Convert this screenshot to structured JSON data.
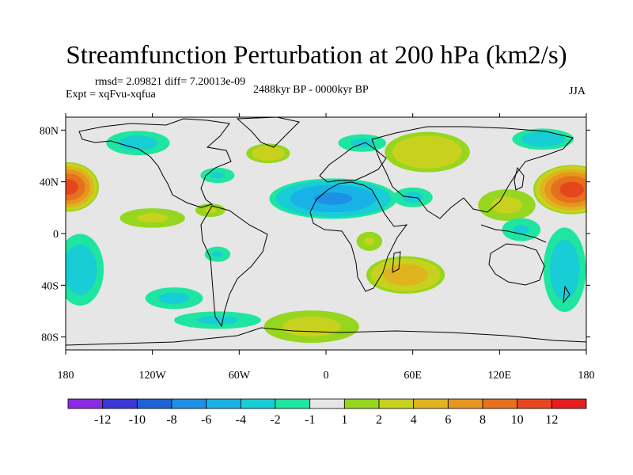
{
  "header": {
    "title": "Streamfunction Perturbation at 200 hPa (km2/s)",
    "stats": "rmsd= 2.09821 diff= 7.20013e-09",
    "experiment": "Expt = xqFvu-xqfua",
    "period": "2488kyr BP - 0000kyr BP",
    "season": "JJA"
  },
  "chart_data": {
    "type": "heatmap",
    "title": "Streamfunction Perturbation at 200 hPa (km2/s)",
    "projection": "cylindrical equidistant",
    "xlim": [
      -180,
      180
    ],
    "ylim": [
      -90,
      90
    ],
    "x_ticks": [
      {
        "value": -180,
        "label": "180"
      },
      {
        "value": -120,
        "label": "120W"
      },
      {
        "value": -60,
        "label": "60W"
      },
      {
        "value": 0,
        "label": "0"
      },
      {
        "value": 60,
        "label": "60E"
      },
      {
        "value": 120,
        "label": "120E"
      },
      {
        "value": 180,
        "label": "180"
      }
    ],
    "y_ticks": [
      {
        "value": 80,
        "label": "80N"
      },
      {
        "value": 40,
        "label": "40N"
      },
      {
        "value": 0,
        "label": "0"
      },
      {
        "value": -40,
        "label": "40S"
      },
      {
        "value": -80,
        "label": "80S"
      }
    ],
    "colorbar": {
      "levels": [
        -14,
        -12,
        -10,
        -8,
        -6,
        -4,
        -2,
        -1,
        1,
        2,
        4,
        6,
        8,
        10,
        12,
        14
      ],
      "labels": [
        "-12",
        "-10",
        "-8",
        "-6",
        "-4",
        "-2",
        "-1",
        "1",
        "2",
        "4",
        "6",
        "8",
        "10",
        "12"
      ],
      "colors": [
        "#8a2be2",
        "#3a37d6",
        "#1e62d6",
        "#1e90e6",
        "#18b2e6",
        "#18cdd6",
        "#1ee6a0",
        "#e6e6e6",
        "#96d61e",
        "#c8d21e",
        "#e0b41e",
        "#e6961e",
        "#e6701e",
        "#e6461e",
        "#e61e1e"
      ]
    },
    "anomalies": [
      {
        "lon": -178,
        "lat": 36,
        "rx": 22,
        "ry": 20,
        "amp": 11
      },
      {
        "lon": 170,
        "lat": 34,
        "rx": 28,
        "ry": 20,
        "amp": 11
      },
      {
        "lon": 70,
        "lat": 63,
        "rx": 34,
        "ry": 18,
        "amp": 4
      },
      {
        "lon": 125,
        "lat": 22,
        "rx": 26,
        "ry": 16,
        "amp": 2.4
      },
      {
        "lon": 150,
        "lat": 73,
        "rx": 26,
        "ry": 10,
        "amp": -3
      },
      {
        "lon": -40,
        "lat": 62,
        "rx": 18,
        "ry": 9,
        "amp": 3.4
      },
      {
        "lon": -130,
        "lat": 70,
        "rx": 28,
        "ry": 12,
        "amp": -2.6
      },
      {
        "lon": -75,
        "lat": 45,
        "rx": 16,
        "ry": 8,
        "amp": -2.2
      },
      {
        "lon": 5,
        "lat": 27,
        "rx": 48,
        "ry": 17,
        "amp": -6.5
      },
      {
        "lon": 60,
        "lat": 28,
        "rx": 18,
        "ry": 10,
        "amp": -2.4
      },
      {
        "lon": -120,
        "lat": 12,
        "rx": 30,
        "ry": 10,
        "amp": 2.3
      },
      {
        "lon": -80,
        "lat": 18,
        "rx": 14,
        "ry": 7,
        "amp": 2.2
      },
      {
        "lon": 30,
        "lat": -6,
        "rx": 12,
        "ry": 10,
        "amp": 2.2
      },
      {
        "lon": 55,
        "lat": -32,
        "rx": 30,
        "ry": 16,
        "amp": 5.5
      },
      {
        "lon": -10,
        "lat": -72,
        "rx": 42,
        "ry": 16,
        "amp": 2.6
      },
      {
        "lon": -170,
        "lat": -28,
        "rx": 20,
        "ry": 34,
        "amp": -3
      },
      {
        "lon": -105,
        "lat": -50,
        "rx": 26,
        "ry": 11,
        "amp": -2.4
      },
      {
        "lon": -75,
        "lat": -67,
        "rx": 40,
        "ry": 9,
        "amp": -2.3
      },
      {
        "lon": 165,
        "lat": -28,
        "rx": 18,
        "ry": 40,
        "amp": -3
      },
      {
        "lon": 135,
        "lat": 3,
        "rx": 18,
        "ry": 12,
        "amp": -2.2
      },
      {
        "lon": -75,
        "lat": -16,
        "rx": 12,
        "ry": 8,
        "amp": -2.2
      },
      {
        "lon": 25,
        "lat": 70,
        "rx": 22,
        "ry": 9,
        "amp": -2.3
      }
    ]
  }
}
